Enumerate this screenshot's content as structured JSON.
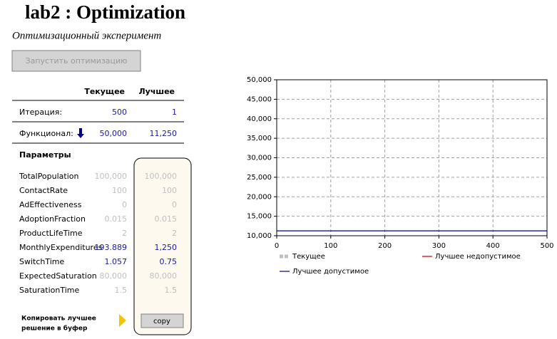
{
  "header": {
    "title": "lab2 : Optimization",
    "subtitle": "Оптимизационный эксперимент"
  },
  "run_button": "Запустить оптимизацию",
  "table": {
    "columns": [
      "Текущее",
      "Лучшее"
    ],
    "rows": [
      {
        "label": "Итерация:",
        "current": "500",
        "best": "1"
      },
      {
        "label": "Функционал:",
        "current": "50,000",
        "best": "11,250"
      }
    ]
  },
  "parameters": {
    "title": "Параметры",
    "rows": [
      {
        "name": "TotalPopulation",
        "current": "100,000",
        "best": "100,000",
        "color": "#c0c0c0"
      },
      {
        "name": "ContactRate",
        "current": "100",
        "best": "100",
        "color": "#c0c0c0"
      },
      {
        "name": "AdEffectiveness",
        "current": "0",
        "best": "0",
        "color": "#c0c0c0"
      },
      {
        "name": "AdoptionFraction",
        "current": "0.015",
        "best": "0.015",
        "color": "#c0c0c0"
      },
      {
        "name": "ProductLifeTime",
        "current": "2",
        "best": "2",
        "color": "#c0c0c0"
      },
      {
        "name": "MonthlyExpenditures",
        "current": "193.889",
        "best": "1,250",
        "color": "#1a1a9c"
      },
      {
        "name": "SwitchTime",
        "current": "1.057",
        "best": "0.75",
        "color": "#1a1a9c"
      },
      {
        "name": "ExpectedSaturation",
        "current": "80,000",
        "best": "80,000",
        "color": "#c0c0c0"
      },
      {
        "name": "SaturationTime",
        "current": "1.5",
        "best": "1.5",
        "color": "#c0c0c0"
      }
    ]
  },
  "copy": {
    "label": [
      "Копировать лучшее",
      "решение в буфер"
    ],
    "button": "copy"
  },
  "chart_data": {
    "type": "line",
    "x": [
      0,
      500
    ],
    "xlim": [
      0,
      500
    ],
    "xticks": [
      0,
      100,
      200,
      300,
      400,
      500
    ],
    "ylim": [
      10000,
      50000
    ],
    "yticks": [
      {
        "value": 10000,
        "label": "10,000"
      },
      {
        "value": 15000,
        "label": "15,000"
      },
      {
        "value": 20000,
        "label": "20,000"
      },
      {
        "value": 25000,
        "label": "25,000"
      },
      {
        "value": 30000,
        "label": "30,000"
      },
      {
        "value": 35000,
        "label": "35,000"
      },
      {
        "value": 40000,
        "label": "40,000"
      },
      {
        "value": 45000,
        "label": "45,000"
      },
      {
        "value": 50000,
        "label": "50,000"
      }
    ],
    "grid": true,
    "series": [
      {
        "name": "Текущее",
        "color": "#c0c0c0",
        "values": [
          null,
          null
        ]
      },
      {
        "name": "Лучшее недопустимое",
        "color": "#cc0000",
        "values": [
          null,
          null
        ]
      },
      {
        "name": "Лучшее допустимое",
        "color": "#000080",
        "values": [
          11250,
          11250
        ]
      }
    ]
  }
}
